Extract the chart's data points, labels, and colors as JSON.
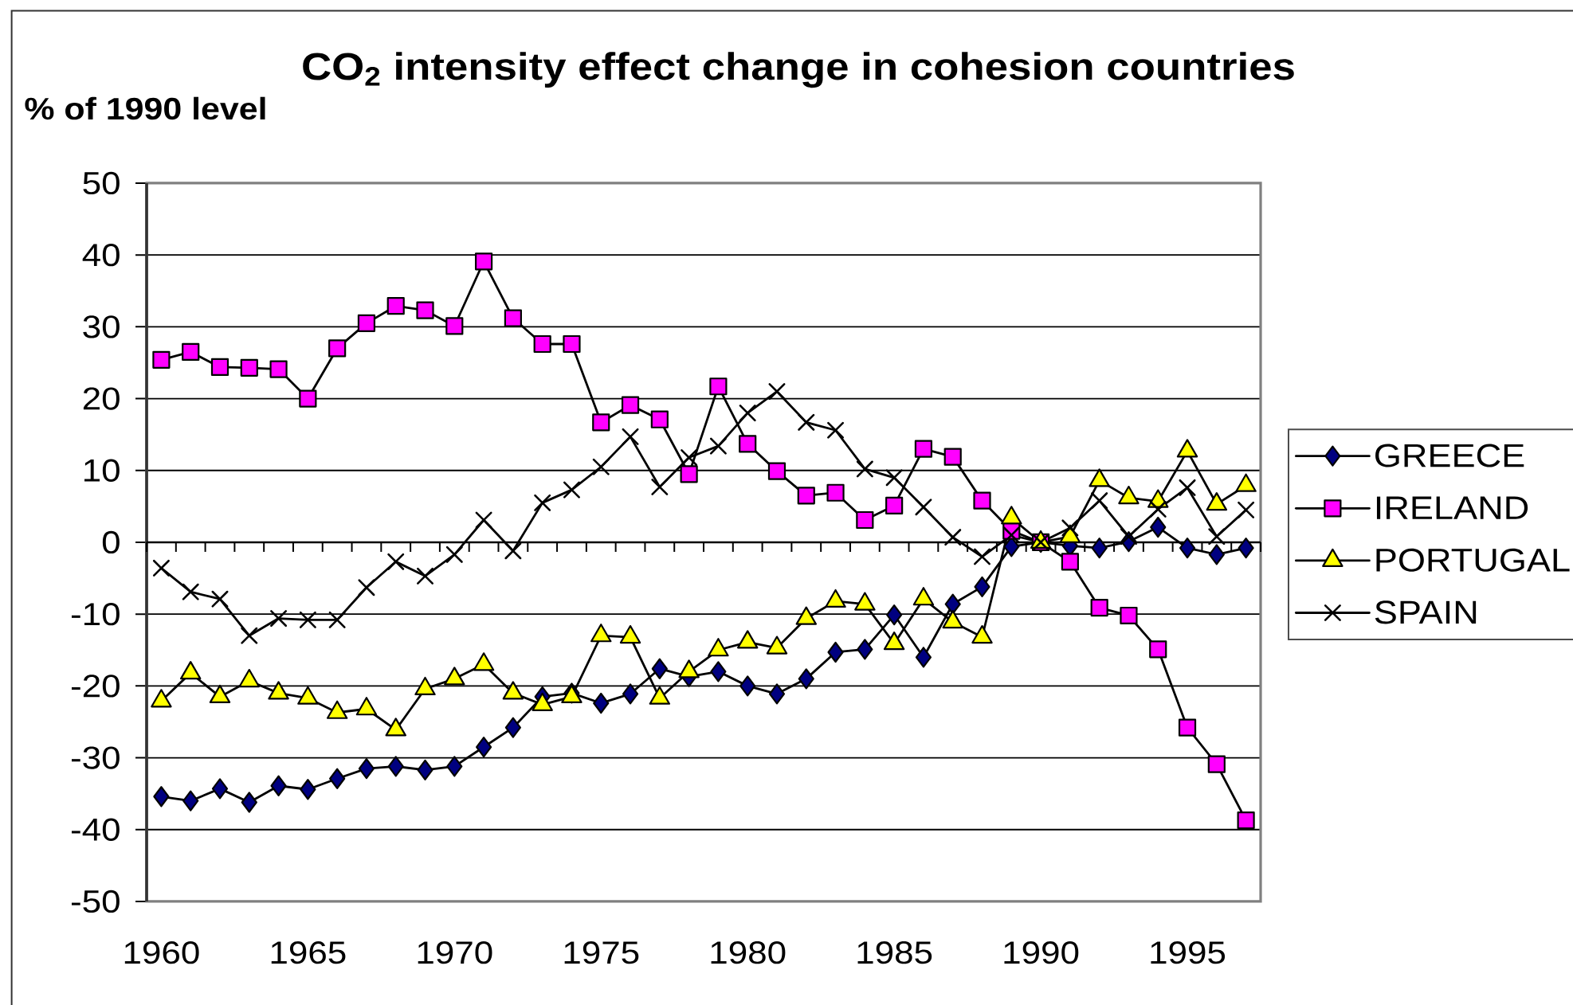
{
  "chart_data": {
    "type": "line",
    "title": "CO$_{2}$ intensity effect change in cohesion countries",
    "ylabel": "% of 1990 level",
    "categories": [
      "1960",
      null,
      null,
      null,
      null,
      "1965",
      null,
      null,
      null,
      null,
      "1970",
      null,
      null,
      null,
      null,
      "1975",
      null,
      null,
      null,
      null,
      "1980",
      null,
      null,
      null,
      null,
      "1985",
      null,
      null,
      null,
      null,
      "1990",
      null,
      null,
      null,
      null,
      "1995",
      null,
      null
    ],
    "series": [
      {
        "name": "GREECE",
        "color": "#000080",
        "marker": "diamond",
        "values": [
          -35.4,
          -36.0,
          -34.3,
          -36.2,
          -33.9,
          -34.4,
          -32.9,
          -31.5,
          -31.2,
          -31.7,
          -31.2,
          -28.5,
          -25.8,
          -21.5,
          -21.0,
          -22.4,
          -21.1,
          -17.6,
          -18.7,
          -18.0,
          -20.0,
          -21.1,
          -19.0,
          -15.3,
          -14.9,
          -10.1,
          -16.0,
          -8.6,
          -6.2,
          -0.6,
          0,
          -0.5,
          -0.8,
          0.1,
          2.1,
          -0.8,
          -1.7,
          -0.8
        ]
      },
      {
        "name": "IRELAND",
        "color": "#ff00ff",
        "marker": "square",
        "values": [
          25.4,
          26.5,
          24.4,
          24.3,
          24.1,
          20.0,
          27.0,
          30.5,
          32.9,
          32.3,
          30.1,
          39.1,
          31.2,
          27.6,
          27.6,
          16.7,
          19.1,
          17.1,
          9.5,
          21.7,
          13.7,
          9.9,
          6.5,
          6.9,
          3.1,
          5.1,
          13.0,
          11.9,
          5.8,
          1.6,
          0,
          -2.7,
          -9.1,
          -10.2,
          -14.9,
          -25.8,
          -30.9,
          -38.7
        ]
      },
      {
        "name": "PORTUGAL",
        "color": "#ffff00",
        "marker": "triangle",
        "values": [
          -22.1,
          -18.2,
          -21.5,
          -19.3,
          -21.0,
          -21.7,
          -23.7,
          -23.2,
          -26.1,
          -20.4,
          -19.0,
          -17.0,
          -21.0,
          -22.6,
          -21.5,
          -13.0,
          -13.2,
          -21.7,
          -18.0,
          -15.0,
          -13.9,
          -14.7,
          -10.6,
          -8.2,
          -8.6,
          -14.1,
          -7.9,
          -11.1,
          -13.2,
          3.4,
          0,
          0.8,
          8.6,
          6.2,
          5.7,
          12.7,
          5.3,
          7.9
        ]
      },
      {
        "name": "SPAIN",
        "color": "#000000",
        "marker": "cross",
        "values": [
          -3.6,
          -6.9,
          -7.9,
          -13.0,
          -10.6,
          -10.8,
          -10.8,
          -6.3,
          -2.7,
          -4.7,
          -1.7,
          3.1,
          -1.2,
          5.5,
          7.3,
          10.5,
          14.7,
          7.7,
          11.8,
          13.4,
          18.0,
          21.0,
          16.7,
          15.6,
          10.2,
          9.0,
          4.9,
          0.7,
          -2.0,
          1.0,
          0,
          2.0,
          5.8,
          0.8,
          4.6,
          7.6,
          0.8,
          4.5
        ]
      }
    ],
    "ylim": [
      -50,
      50
    ],
    "yticks": [
      -50,
      -40,
      -30,
      -20,
      -10,
      0,
      10,
      20,
      30,
      40,
      50
    ],
    "grid": "y",
    "legend": "right"
  }
}
